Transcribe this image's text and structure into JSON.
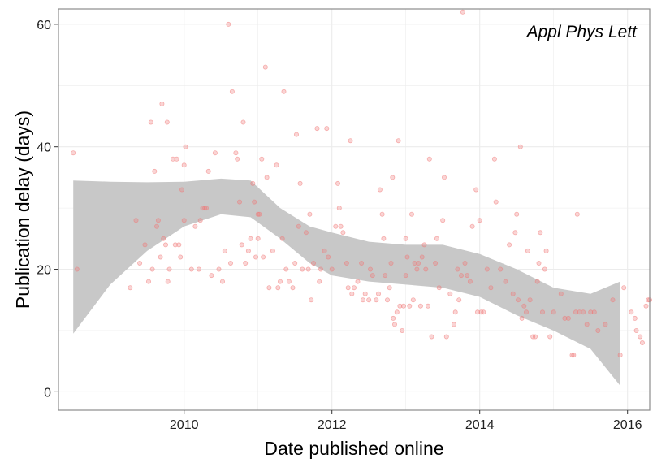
{
  "chart_data": {
    "type": "scatter",
    "title": "",
    "annotation": "Appl Phys Lett",
    "xlabel": "Date published online",
    "ylabel": "Publication delay (days)",
    "xlim": [
      2008.3,
      2016.3
    ],
    "ylim": [
      -3,
      62.5
    ],
    "x_ticks": [
      2010,
      2012,
      2014,
      2016
    ],
    "x_tick_labels": [
      "2010",
      "2012",
      "2014",
      "2016"
    ],
    "x_minor_ticks": [
      2009,
      2011,
      2013,
      2015
    ],
    "y_ticks": [
      0,
      20,
      40,
      60
    ],
    "y_tick_labels": [
      "0",
      "20",
      "40",
      "60"
    ],
    "y_minor_ticks": [
      10,
      30,
      50
    ],
    "grid": true,
    "legend": "none",
    "colors": {
      "points": "#f07a78",
      "band": "#c8c8c8",
      "panel_border": "#8c8c8c",
      "grid": "#ececec"
    },
    "smooth": {
      "x": [
        2008.5,
        2009,
        2009.5,
        2010,
        2010.5,
        2010.9,
        2011.3,
        2011.7,
        2012,
        2012.5,
        2013,
        2013.5,
        2014,
        2014.5,
        2015,
        2015.5,
        2015.9
      ],
      "lower": [
        9.5,
        17.5,
        23,
        27,
        29,
        28.5,
        25,
        21,
        19,
        18,
        17.5,
        17,
        15.5,
        12.5,
        10,
        7,
        1
      ],
      "upper": [
        34.5,
        34.3,
        34.2,
        34.3,
        34.8,
        34.5,
        30,
        27,
        26,
        24.5,
        24,
        24,
        22.5,
        20,
        17,
        16,
        18
      ]
    },
    "series": [
      {
        "points": [
          [
            2008.5,
            39
          ],
          [
            2008.55,
            20
          ],
          [
            2009.27,
            17
          ],
          [
            2009.35,
            28
          ],
          [
            2009.4,
            21
          ],
          [
            2009.47,
            24
          ],
          [
            2009.52,
            18
          ],
          [
            2009.55,
            44
          ],
          [
            2009.57,
            20
          ],
          [
            2009.6,
            36
          ],
          [
            2009.63,
            27
          ],
          [
            2009.65,
            28
          ],
          [
            2009.68,
            22
          ],
          [
            2009.7,
            47
          ],
          [
            2009.72,
            25
          ],
          [
            2009.75,
            24
          ],
          [
            2009.77,
            44
          ],
          [
            2009.78,
            18
          ],
          [
            2009.8,
            20
          ],
          [
            2009.85,
            38
          ],
          [
            2009.88,
            24
          ],
          [
            2009.9,
            38
          ],
          [
            2009.93,
            24
          ],
          [
            2009.95,
            22
          ],
          [
            2009.97,
            33
          ],
          [
            2010,
            37
          ],
          [
            2010,
            28
          ],
          [
            2010.02,
            40
          ],
          [
            2010.1,
            20
          ],
          [
            2010.15,
            27
          ],
          [
            2010.2,
            20
          ],
          [
            2010.22,
            28
          ],
          [
            2010.25,
            30
          ],
          [
            2010.28,
            30
          ],
          [
            2010.3,
            30
          ],
          [
            2010.33,
            36
          ],
          [
            2010.37,
            19
          ],
          [
            2010.42,
            39
          ],
          [
            2010.47,
            20
          ],
          [
            2010.52,
            18
          ],
          [
            2010.55,
            23
          ],
          [
            2010.6,
            60
          ],
          [
            2010.63,
            21
          ],
          [
            2010.65,
            49
          ],
          [
            2010.7,
            39
          ],
          [
            2010.72,
            38
          ],
          [
            2010.75,
            31
          ],
          [
            2010.78,
            24
          ],
          [
            2010.8,
            44
          ],
          [
            2010.83,
            21
          ],
          [
            2010.87,
            23
          ],
          [
            2010.9,
            25
          ],
          [
            2010.93,
            34
          ],
          [
            2010.95,
            31
          ],
          [
            2010.97,
            22
          ],
          [
            2011,
            25
          ],
          [
            2011,
            29
          ],
          [
            2011.02,
            29
          ],
          [
            2011.05,
            38
          ],
          [
            2011.07,
            22
          ],
          [
            2011.1,
            53
          ],
          [
            2011.12,
            35
          ],
          [
            2011.15,
            17
          ],
          [
            2011.2,
            23
          ],
          [
            2011.25,
            37
          ],
          [
            2011.27,
            17
          ],
          [
            2011.3,
            18
          ],
          [
            2011.33,
            25
          ],
          [
            2011.35,
            49
          ],
          [
            2011.38,
            20
          ],
          [
            2011.42,
            18
          ],
          [
            2011.47,
            17
          ],
          [
            2011.5,
            21
          ],
          [
            2011.52,
            42
          ],
          [
            2011.55,
            27
          ],
          [
            2011.57,
            34
          ],
          [
            2011.6,
            20
          ],
          [
            2011.65,
            26
          ],
          [
            2011.68,
            20
          ],
          [
            2011.7,
            29
          ],
          [
            2011.72,
            15
          ],
          [
            2011.75,
            21
          ],
          [
            2011.8,
            43
          ],
          [
            2011.83,
            18
          ],
          [
            2011.85,
            20
          ],
          [
            2011.9,
            23
          ],
          [
            2011.93,
            43
          ],
          [
            2011.95,
            22
          ],
          [
            2012,
            20
          ],
          [
            2012.05,
            27
          ],
          [
            2012.08,
            34
          ],
          [
            2012.1,
            30
          ],
          [
            2012.12,
            27
          ],
          [
            2012.15,
            26
          ],
          [
            2012.2,
            21
          ],
          [
            2012.22,
            17
          ],
          [
            2012.25,
            41
          ],
          [
            2012.27,
            16
          ],
          [
            2012.3,
            17
          ],
          [
            2012.35,
            18
          ],
          [
            2012.4,
            21
          ],
          [
            2012.42,
            15
          ],
          [
            2012.45,
            16
          ],
          [
            2012.5,
            15
          ],
          [
            2012.52,
            20
          ],
          [
            2012.55,
            19
          ],
          [
            2012.6,
            15
          ],
          [
            2012.63,
            16
          ],
          [
            2012.65,
            33
          ],
          [
            2012.68,
            29
          ],
          [
            2012.7,
            25
          ],
          [
            2012.72,
            19
          ],
          [
            2012.75,
            15
          ],
          [
            2012.78,
            17
          ],
          [
            2012.8,
            21
          ],
          [
            2012.82,
            35
          ],
          [
            2012.83,
            12
          ],
          [
            2012.85,
            11
          ],
          [
            2012.88,
            13
          ],
          [
            2012.9,
            41
          ],
          [
            2012.92,
            14
          ],
          [
            2012.95,
            10
          ],
          [
            2012.97,
            14
          ],
          [
            2013,
            25
          ],
          [
            2013,
            19
          ],
          [
            2013.02,
            22
          ],
          [
            2013.05,
            14
          ],
          [
            2013.08,
            29
          ],
          [
            2013.1,
            15
          ],
          [
            2013.12,
            21
          ],
          [
            2013.15,
            20
          ],
          [
            2013.17,
            21
          ],
          [
            2013.2,
            14
          ],
          [
            2013.22,
            22
          ],
          [
            2013.25,
            24
          ],
          [
            2013.27,
            20
          ],
          [
            2013.3,
            14
          ],
          [
            2013.32,
            38
          ],
          [
            2013.35,
            9
          ],
          [
            2013.4,
            21
          ],
          [
            2013.42,
            25
          ],
          [
            2013.45,
            17
          ],
          [
            2013.5,
            28
          ],
          [
            2013.52,
            35
          ],
          [
            2013.55,
            9
          ],
          [
            2013.6,
            16
          ],
          [
            2013.65,
            11
          ],
          [
            2013.67,
            13
          ],
          [
            2013.7,
            20
          ],
          [
            2013.72,
            15
          ],
          [
            2013.75,
            19
          ],
          [
            2013.77,
            62
          ],
          [
            2013.8,
            21
          ],
          [
            2013.83,
            19
          ],
          [
            2013.87,
            18
          ],
          [
            2013.9,
            27
          ],
          [
            2013.95,
            33
          ],
          [
            2013.97,
            13
          ],
          [
            2014,
            28
          ],
          [
            2014.02,
            13
          ],
          [
            2014.05,
            13
          ],
          [
            2014.1,
            20
          ],
          [
            2014.15,
            17
          ],
          [
            2014.2,
            38
          ],
          [
            2014.22,
            31
          ],
          [
            2014.28,
            20
          ],
          [
            2014.35,
            18
          ],
          [
            2014.4,
            24
          ],
          [
            2014.45,
            16
          ],
          [
            2014.48,
            26
          ],
          [
            2014.5,
            29
          ],
          [
            2014.52,
            15
          ],
          [
            2014.55,
            40
          ],
          [
            2014.57,
            12
          ],
          [
            2014.6,
            14
          ],
          [
            2014.63,
            13
          ],
          [
            2014.65,
            23
          ],
          [
            2014.68,
            15
          ],
          [
            2014.72,
            9
          ],
          [
            2014.75,
            9
          ],
          [
            2014.78,
            18
          ],
          [
            2014.8,
            21
          ],
          [
            2014.82,
            26
          ],
          [
            2014.85,
            13
          ],
          [
            2014.88,
            20
          ],
          [
            2014.9,
            23
          ],
          [
            2014.95,
            9
          ],
          [
            2015,
            13
          ],
          [
            2015.1,
            16
          ],
          [
            2015.15,
            12
          ],
          [
            2015.2,
            12
          ],
          [
            2015.25,
            6
          ],
          [
            2015.27,
            6
          ],
          [
            2015.3,
            13
          ],
          [
            2015.32,
            29
          ],
          [
            2015.35,
            13
          ],
          [
            2015.4,
            13
          ],
          [
            2015.45,
            11
          ],
          [
            2015.5,
            13
          ],
          [
            2015.55,
            13
          ],
          [
            2015.6,
            10
          ],
          [
            2015.7,
            11
          ],
          [
            2015.8,
            15
          ],
          [
            2015.9,
            6
          ],
          [
            2015.95,
            17
          ],
          [
            2016.05,
            13
          ],
          [
            2016.1,
            12
          ],
          [
            2016.12,
            10
          ],
          [
            2016.17,
            9
          ],
          [
            2016.2,
            8
          ],
          [
            2016.25,
            14
          ],
          [
            2016.28,
            15
          ],
          [
            2016.3,
            15
          ]
        ]
      }
    ]
  }
}
